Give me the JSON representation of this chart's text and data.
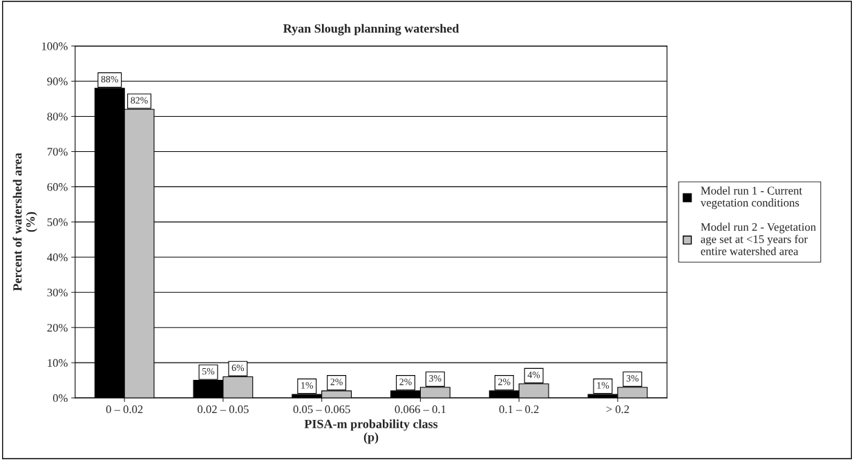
{
  "chart_data": {
    "type": "bar",
    "title": "Ryan Slough planning watershed",
    "xlabel": "PISA-m probability class\n(p)",
    "ylabel": "Percent of watershed area\n(%)",
    "categories": [
      "0 – 0.02",
      "0.02 – 0.05",
      "0.05 – 0.065",
      "0.066 – 0.1",
      "0.1 – 0.2",
      "> 0.2"
    ],
    "series": [
      {
        "name": "Model run 1 - Current vegetation conditions",
        "color": "#000000",
        "values": [
          88,
          5,
          1,
          2,
          2,
          1
        ],
        "value_labels": [
          "88%",
          "5%",
          "1%",
          "2%",
          "2%",
          "1%"
        ]
      },
      {
        "name": "Model run 2 - Vegetation age set at <15 years for entire watershed area",
        "color": "#c0c0c0",
        "values": [
          82,
          6,
          2,
          3,
          4,
          3
        ],
        "value_labels": [
          "82%",
          "6%",
          "2%",
          "3%",
          "4%",
          "3%"
        ]
      }
    ],
    "ylim": [
      0,
      100
    ],
    "yticks": [
      {
        "value": 0,
        "label": "0%"
      },
      {
        "value": 10,
        "label": "10%"
      },
      {
        "value": 20,
        "label": "20%"
      },
      {
        "value": 30,
        "label": "30%"
      },
      {
        "value": 40,
        "label": "40%"
      },
      {
        "value": 50,
        "label": "50%"
      },
      {
        "value": 60,
        "label": "60%"
      },
      {
        "value": 70,
        "label": "70%"
      },
      {
        "value": 80,
        "label": "80%"
      },
      {
        "value": 90,
        "label": "90%"
      },
      {
        "value": 100,
        "label": "100%"
      }
    ],
    "grid": "y",
    "legend": "right"
  }
}
